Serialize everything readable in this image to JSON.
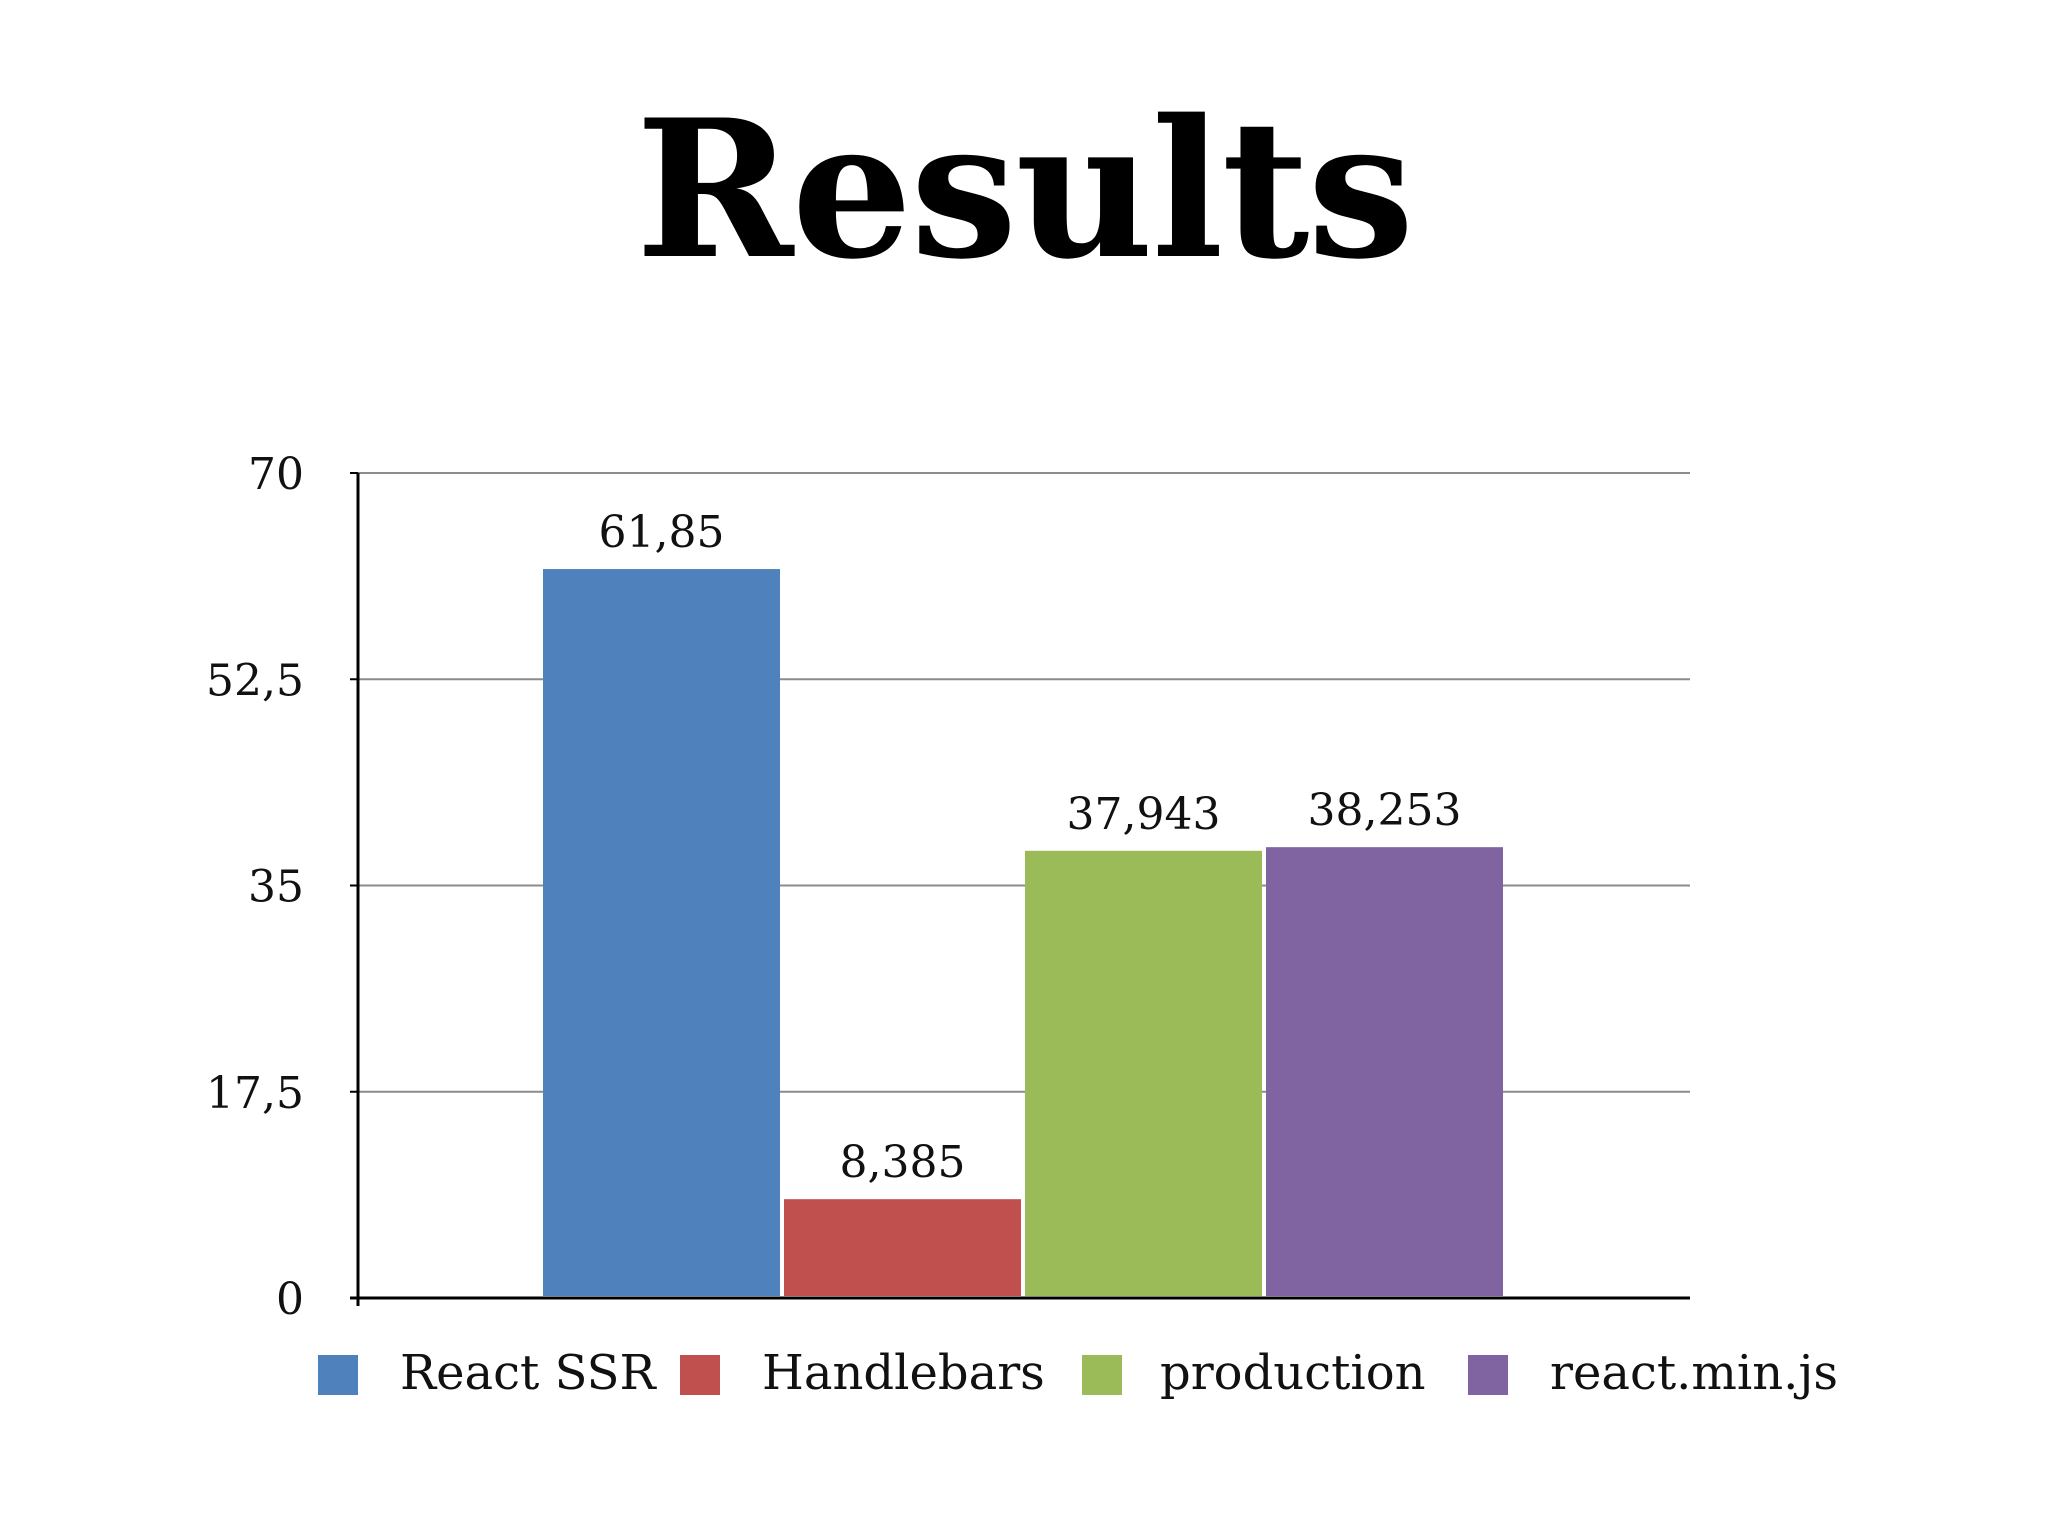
{
  "slide": {
    "title": "Results"
  },
  "chart_data": {
    "type": "bar",
    "title": "",
    "xlabel": "",
    "ylabel": "",
    "ylim": [
      0,
      70
    ],
    "yticks": [
      0,
      17.5,
      35,
      52.5,
      70
    ],
    "ytick_labels": [
      "0",
      "17,5",
      "35",
      "52,5",
      "70"
    ],
    "grid": true,
    "legend_position": "bottom",
    "series": [
      {
        "name": "React SSR",
        "value": 61.85,
        "label": "61,85",
        "color": "#4f81bd"
      },
      {
        "name": "Handlebars",
        "value": 8.385,
        "label": "8,385",
        "color": "#c0504d"
      },
      {
        "name": "production",
        "value": 37.943,
        "label": "37,943",
        "color": "#9bbb59"
      },
      {
        "name": "react.min.js",
        "value": 38.253,
        "label": "38,253",
        "color": "#8064a2"
      }
    ]
  }
}
